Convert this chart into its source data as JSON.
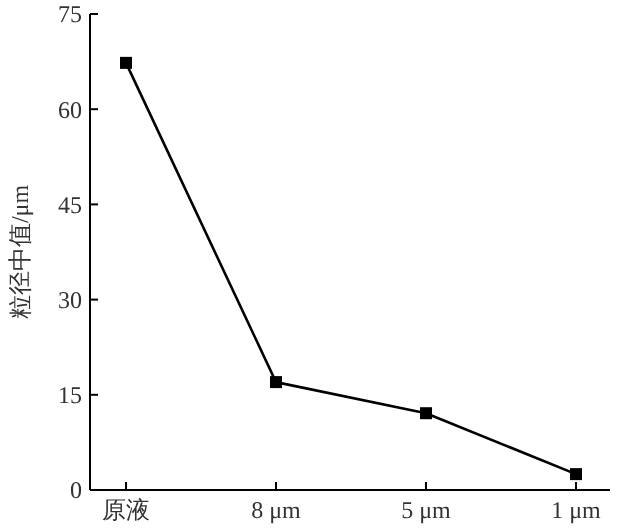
{
  "chart_data": {
    "type": "line",
    "ylabel": "粒径中值/μm",
    "categories": [
      "原液",
      "8 μm",
      "5 μm",
      "1 μm"
    ],
    "series": [
      {
        "color": "#000000",
        "values": [
          67.3,
          17,
          12.1,
          2.5
        ]
      }
    ],
    "ylim": [
      0,
      75
    ],
    "yticks": [
      0,
      15,
      30,
      45,
      60,
      75
    ],
    "marker": "square",
    "line_style": "solid",
    "grid": false
  }
}
